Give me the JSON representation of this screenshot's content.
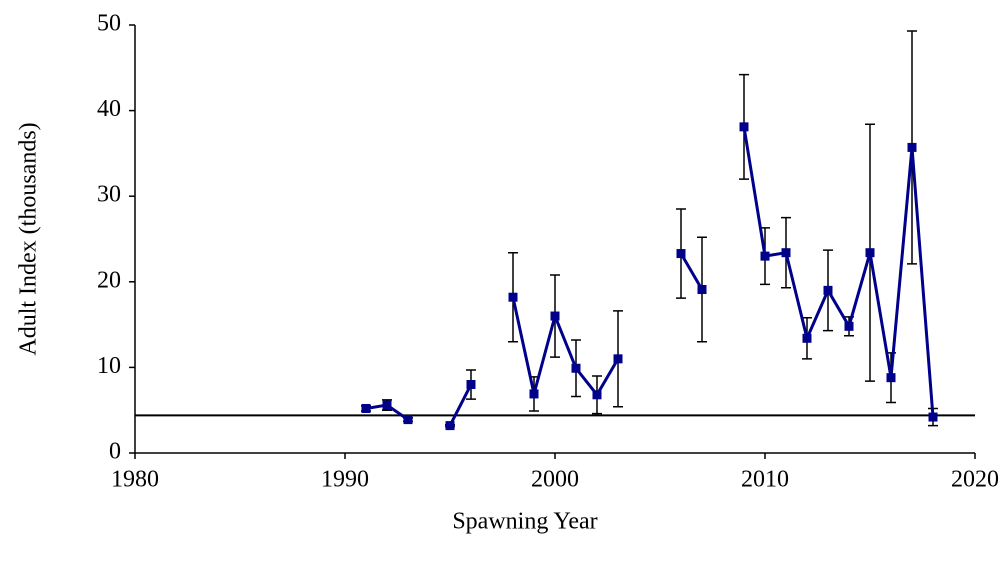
{
  "chart_data": {
    "type": "line",
    "xlabel": "Spawning Year",
    "ylabel": "Adult Index (thousands)",
    "x": [
      1991,
      1992,
      1993,
      1994,
      1995,
      1996,
      1997,
      1998,
      1999,
      2000,
      2001,
      2002,
      2003,
      2004,
      2005,
      2006,
      2007,
      2008,
      2009,
      2010,
      2011,
      2012,
      2013,
      2014,
      2015,
      2016,
      2017,
      2018
    ],
    "series": [
      {
        "color": "#00008b",
        "values": [
          5.2,
          5.6,
          3.9,
          null,
          3.2,
          8.0,
          null,
          18.2,
          6.9,
          16.0,
          9.9,
          6.8,
          11.0,
          null,
          null,
          23.3,
          19.1,
          null,
          38.1,
          23.0,
          23.4,
          13.4,
          19.0,
          14.8,
          23.4,
          8.8,
          35.7,
          4.2
        ],
        "errors": [
          0.3,
          0.6,
          0.2,
          null,
          0.1,
          1.7,
          null,
          5.2,
          2.0,
          4.8,
          3.3,
          2.2,
          5.6,
          null,
          null,
          5.2,
          6.1,
          null,
          6.1,
          3.3,
          4.1,
          2.4,
          4.7,
          1.1,
          15.0,
          2.9,
          13.6,
          1.0
        ]
      }
    ],
    "reference_line": 4.4,
    "xlim": [
      1980,
      2020
    ],
    "xticks": [
      1980,
      1990,
      2000,
      2010,
      2020
    ],
    "ylim": [
      0,
      50
    ],
    "yticks": [
      0,
      10,
      20,
      30,
      40,
      50
    ]
  }
}
